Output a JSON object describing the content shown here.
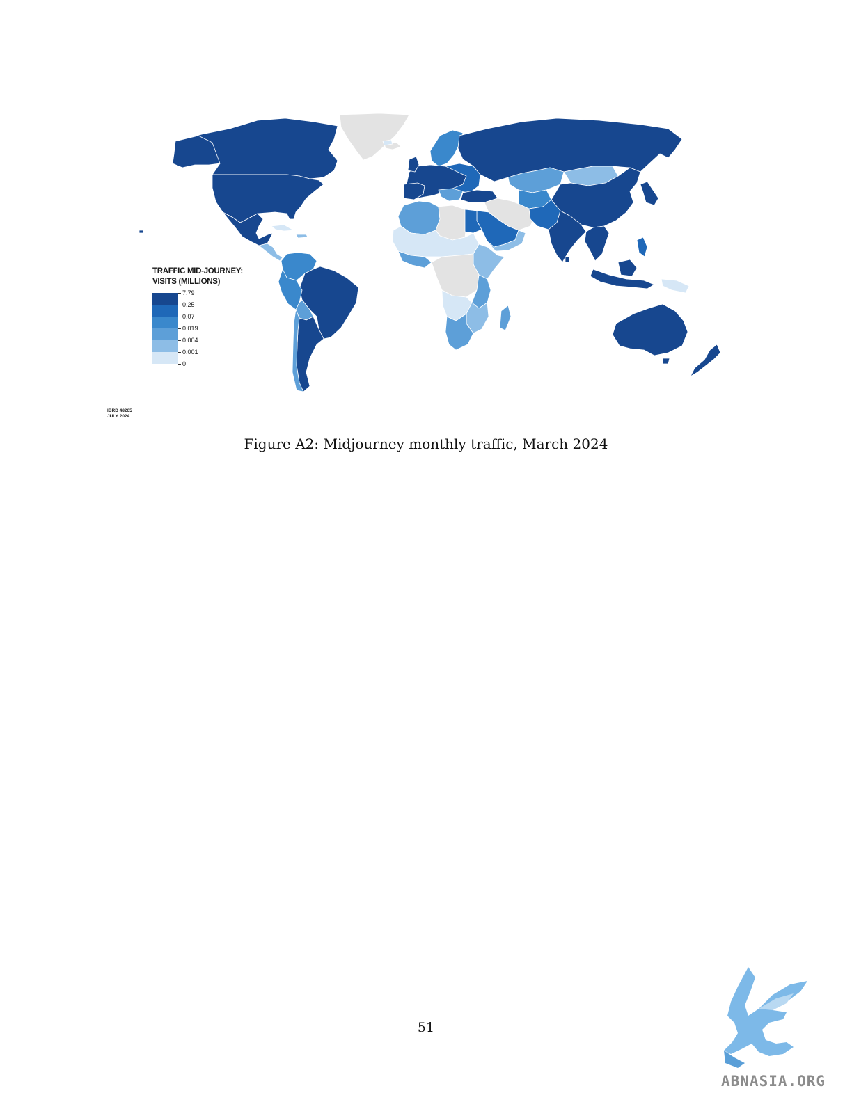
{
  "legend": {
    "title_line1": "TRAFFIC MID-JOURNEY:",
    "title_line2": "VISITS (MILLIONS)",
    "classes": [
      {
        "label": "7.79",
        "color": "#17478f"
      },
      {
        "label": "0.25",
        "color": "#1f68b8"
      },
      {
        "label": "0.07",
        "color": "#3a88cc"
      },
      {
        "label": "0.019",
        "color": "#5d9fd8"
      },
      {
        "label": "0.004",
        "color": "#8dbde6"
      },
      {
        "label": "0.001",
        "color": "#d6e7f6"
      },
      {
        "label": "0",
        "color": ""
      }
    ]
  },
  "colors": {
    "no_data": "#e3e3e3",
    "c0": "#17478f",
    "c1": "#1f68b8",
    "c2": "#3a88cc",
    "c3": "#5d9fd8",
    "c4": "#8dbde6",
    "c5": "#d6e7f6"
  },
  "map_id": {
    "line1": "IBRD 48265 |",
    "line2": "JULY 2024"
  },
  "caption": "Figure A2: Midjourney monthly traffic, March 2024",
  "page_number": "51",
  "logo": {
    "text": "ABNASIA.ORG",
    "icon": "griffin-logo-icon"
  }
}
